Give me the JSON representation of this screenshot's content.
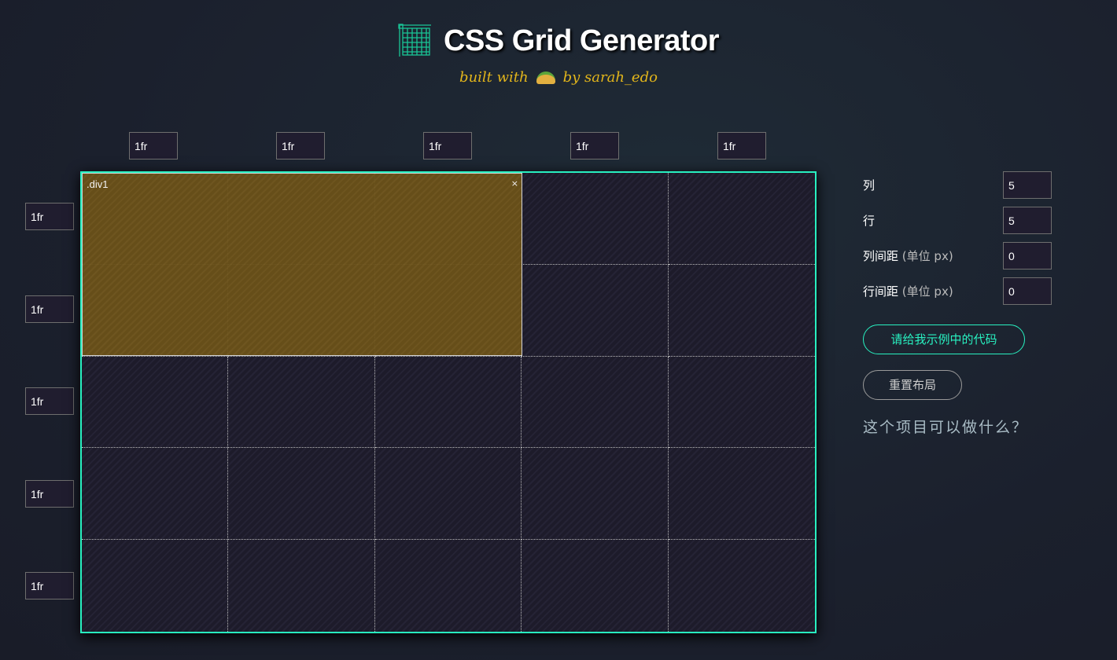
{
  "header": {
    "title": "CSS Grid Generator",
    "subtitle_pre": "built with",
    "subtitle_post": "by sarah_edo"
  },
  "columns": [
    "1fr",
    "1fr",
    "1fr",
    "1fr",
    "1fr"
  ],
  "rows": [
    "1fr",
    "1fr",
    "1fr",
    "1fr",
    "1fr"
  ],
  "grid": {
    "item_label": ".div1",
    "item_close": "×",
    "item_span": {
      "columns": "1-3",
      "rows": "1-2"
    }
  },
  "panel": {
    "columns_label": "列",
    "columns_value": "5",
    "rows_label": "行",
    "rows_value": "5",
    "col_gap_label": "列间距",
    "col_gap_unit": "(单位 px)",
    "col_gap_value": "0",
    "row_gap_label": "行间距",
    "row_gap_unit": "(单位 px)",
    "row_gap_value": "0",
    "code_button": "请给我示例中的代码",
    "reset_button": "重置布局",
    "about_link": "这个项目可以做什么？"
  },
  "colors": {
    "accent": "#28f0c0",
    "subtitle": "#e2b51b",
    "item": "#6a5119"
  }
}
